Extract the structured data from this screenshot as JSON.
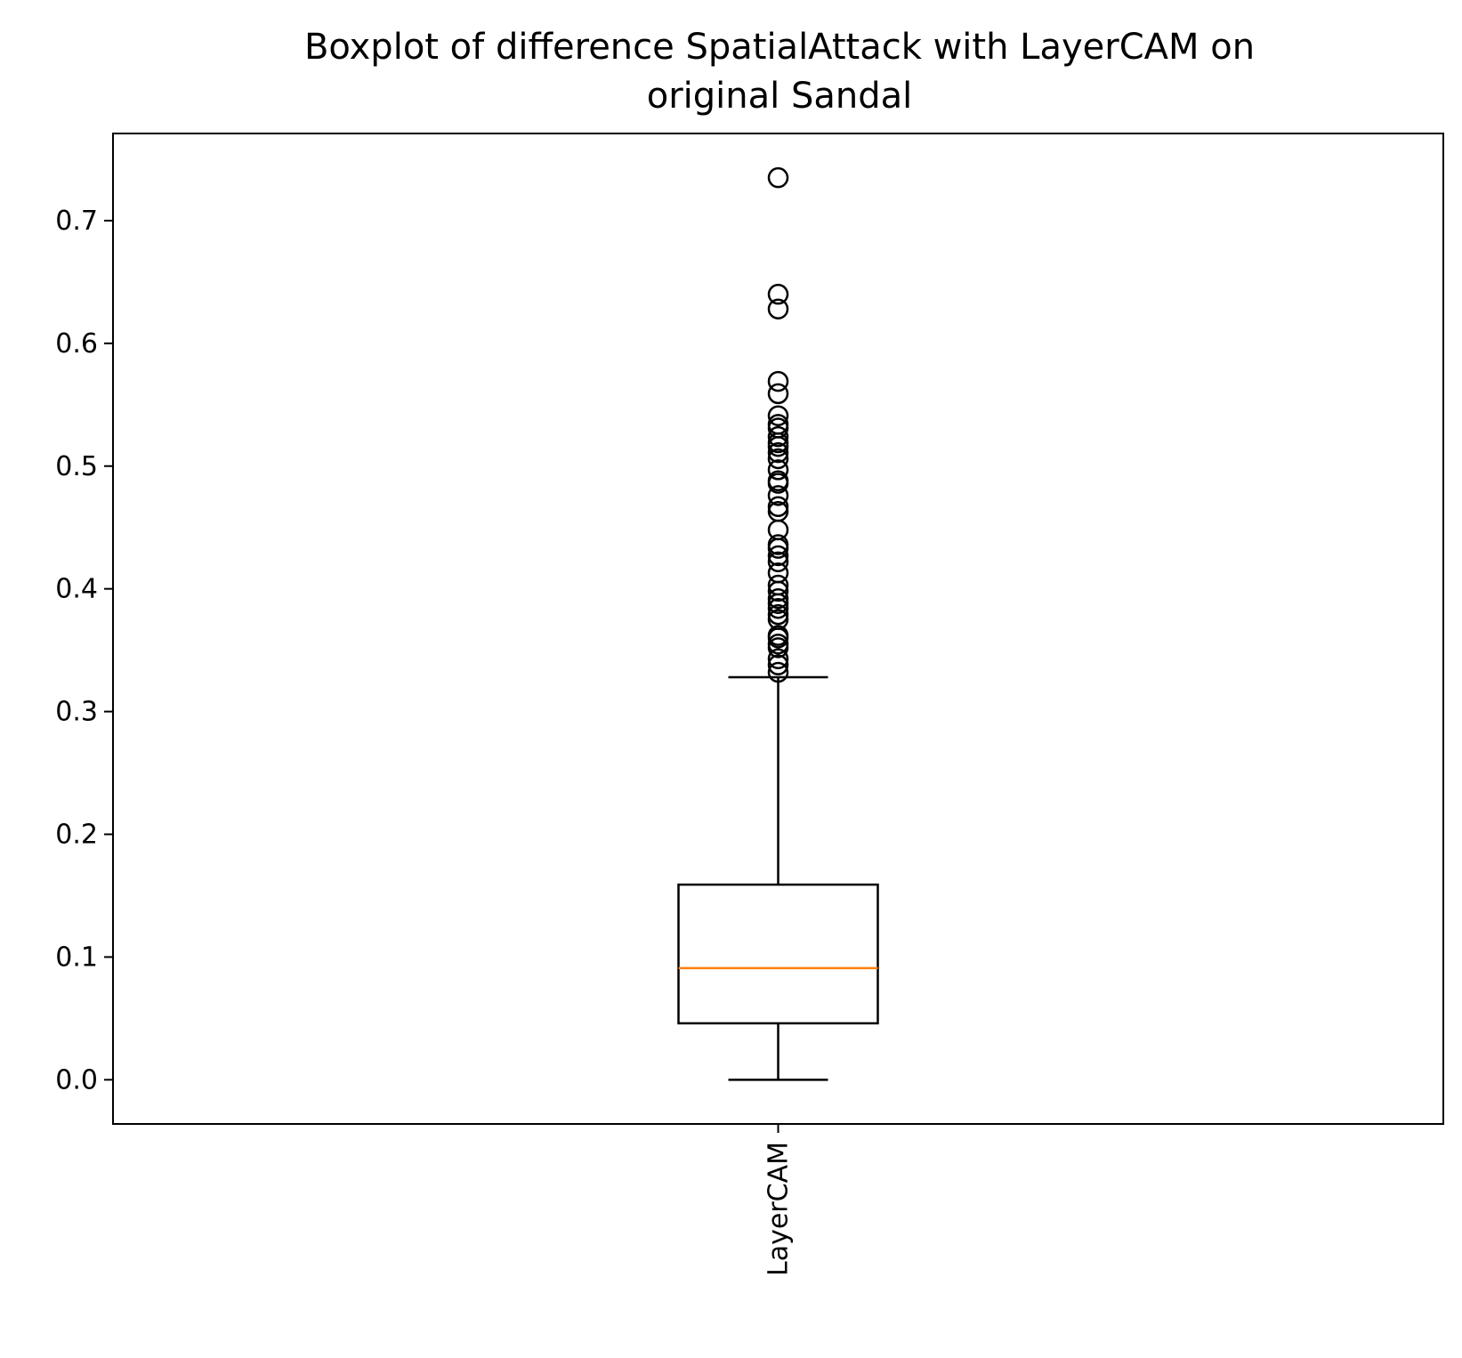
{
  "chart_data": {
    "type": "boxplot",
    "title_lines": [
      "Boxplot of difference SpatialAttack with LayerCAM on",
      "original Sandal"
    ],
    "xlabel": "",
    "ylabel": "",
    "categories": [
      "LayerCAM"
    ],
    "ylim": [
      -0.036,
      0.771
    ],
    "yticks": [
      0.0,
      0.1,
      0.2,
      0.3,
      0.4,
      0.5,
      0.6,
      0.7
    ],
    "ytick_labels": [
      "0.0",
      "0.1",
      "0.2",
      "0.3",
      "0.4",
      "0.5",
      "0.6",
      "0.7"
    ],
    "grid": false,
    "boxes": [
      {
        "whisker_low": 0.0,
        "q1": 0.046,
        "median": 0.091,
        "q3": 0.159,
        "whisker_high": 0.328,
        "fliers": [
          0.332,
          0.338,
          0.343,
          0.352,
          0.355,
          0.36,
          0.362,
          0.375,
          0.379,
          0.384,
          0.388,
          0.392,
          0.398,
          0.403,
          0.413,
          0.422,
          0.427,
          0.433,
          0.436,
          0.448,
          0.463,
          0.467,
          0.476,
          0.486,
          0.488,
          0.497,
          0.506,
          0.511,
          0.516,
          0.519,
          0.524,
          0.531,
          0.534,
          0.541,
          0.559,
          0.569,
          0.628,
          0.64,
          0.735
        ]
      }
    ],
    "colors": {
      "median": "#ff7f0e",
      "box": "#000000",
      "flier": "#000000"
    }
  }
}
